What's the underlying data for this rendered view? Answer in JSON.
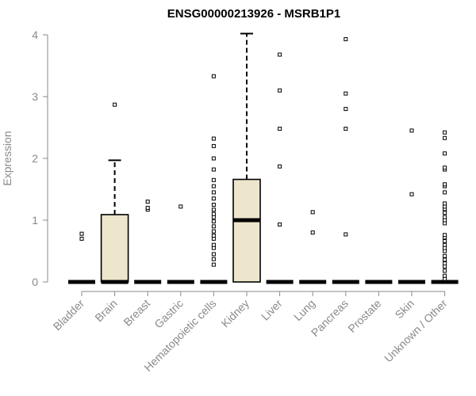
{
  "chart_data": {
    "type": "box",
    "title": "ENSG00000213926 - MSRB1P1",
    "xlabel": "",
    "ylabel": "Expression",
    "ylim": [
      0,
      4
    ],
    "yticks": [
      0,
      1,
      2,
      3,
      4
    ],
    "box_fill": "#ede6cc",
    "categories": [
      "Bladder",
      "Brain",
      "Breast",
      "Gastric",
      "Hematopoietic cells",
      "Kidney",
      "Liver",
      "Lung",
      "Pancreas",
      "Prostate",
      "Skin",
      "Unknown / Other"
    ],
    "boxes": [
      {
        "name": "Bladder",
        "q1": 0,
        "median": 0,
        "q3": 0,
        "whisker_low": 0,
        "whisker_high": 0,
        "outliers": [
          0.7,
          0.78
        ]
      },
      {
        "name": "Brain",
        "q1": 0,
        "median": 0,
        "q3": 1.09,
        "whisker_low": 0,
        "whisker_high": 1.97,
        "outliers": [
          2.87
        ]
      },
      {
        "name": "Breast",
        "q1": 0,
        "median": 0,
        "q3": 0,
        "whisker_low": 0,
        "whisker_high": 0,
        "outliers": [
          1.17,
          1.2,
          1.3
        ]
      },
      {
        "name": "Gastric",
        "q1": 0,
        "median": 0,
        "q3": 0,
        "whisker_low": 0,
        "whisker_high": 0,
        "outliers": [
          1.22
        ]
      },
      {
        "name": "Hematopoietic cells",
        "q1": 0,
        "median": 0,
        "q3": 0,
        "whisker_low": 0,
        "whisker_high": 0,
        "outliers": [
          0.28,
          0.37,
          0.45,
          0.55,
          0.6,
          0.7,
          0.75,
          0.82,
          0.9,
          0.98,
          1.05,
          1.1,
          1.17,
          1.25,
          1.35,
          1.45,
          1.55,
          1.65,
          1.82,
          2.0,
          2.2,
          2.32,
          3.33
        ]
      },
      {
        "name": "Kidney",
        "q1": 0,
        "median": 1.0,
        "q3": 1.66,
        "whisker_low": 0,
        "whisker_high": 4.02,
        "outliers": []
      },
      {
        "name": "Liver",
        "q1": 0,
        "median": 0,
        "q3": 0,
        "whisker_low": 0,
        "whisker_high": 0,
        "outliers": [
          0.93,
          1.87,
          2.48,
          3.1,
          3.68
        ]
      },
      {
        "name": "Lung",
        "q1": 0,
        "median": 0,
        "q3": 0,
        "whisker_low": 0,
        "whisker_high": 0,
        "outliers": [
          0.8,
          1.13
        ]
      },
      {
        "name": "Pancreas",
        "q1": 0,
        "median": 0,
        "q3": 0,
        "whisker_low": 0,
        "whisker_high": 0,
        "outliers": [
          0.77,
          2.48,
          2.8,
          3.05,
          3.93
        ]
      },
      {
        "name": "Prostate",
        "q1": 0,
        "median": 0,
        "q3": 0,
        "whisker_low": 0,
        "whisker_high": 0,
        "outliers": []
      },
      {
        "name": "Skin",
        "q1": 0,
        "median": 0,
        "q3": 0,
        "whisker_low": 0,
        "whisker_high": 0,
        "outliers": [
          1.42,
          2.45
        ]
      },
      {
        "name": "Unknown / Other",
        "q1": 0,
        "median": 0,
        "q3": 0,
        "whisker_low": 0,
        "whisker_high": 0,
        "outliers": [
          0.05,
          0.1,
          0.18,
          0.25,
          0.3,
          0.36,
          0.42,
          0.5,
          0.55,
          0.6,
          0.66,
          0.72,
          0.76,
          0.95,
          1.0,
          1.05,
          1.12,
          1.18,
          1.22,
          1.27,
          1.45,
          1.55,
          1.58,
          1.82,
          1.85,
          2.08,
          2.33,
          2.42
        ]
      }
    ]
  }
}
